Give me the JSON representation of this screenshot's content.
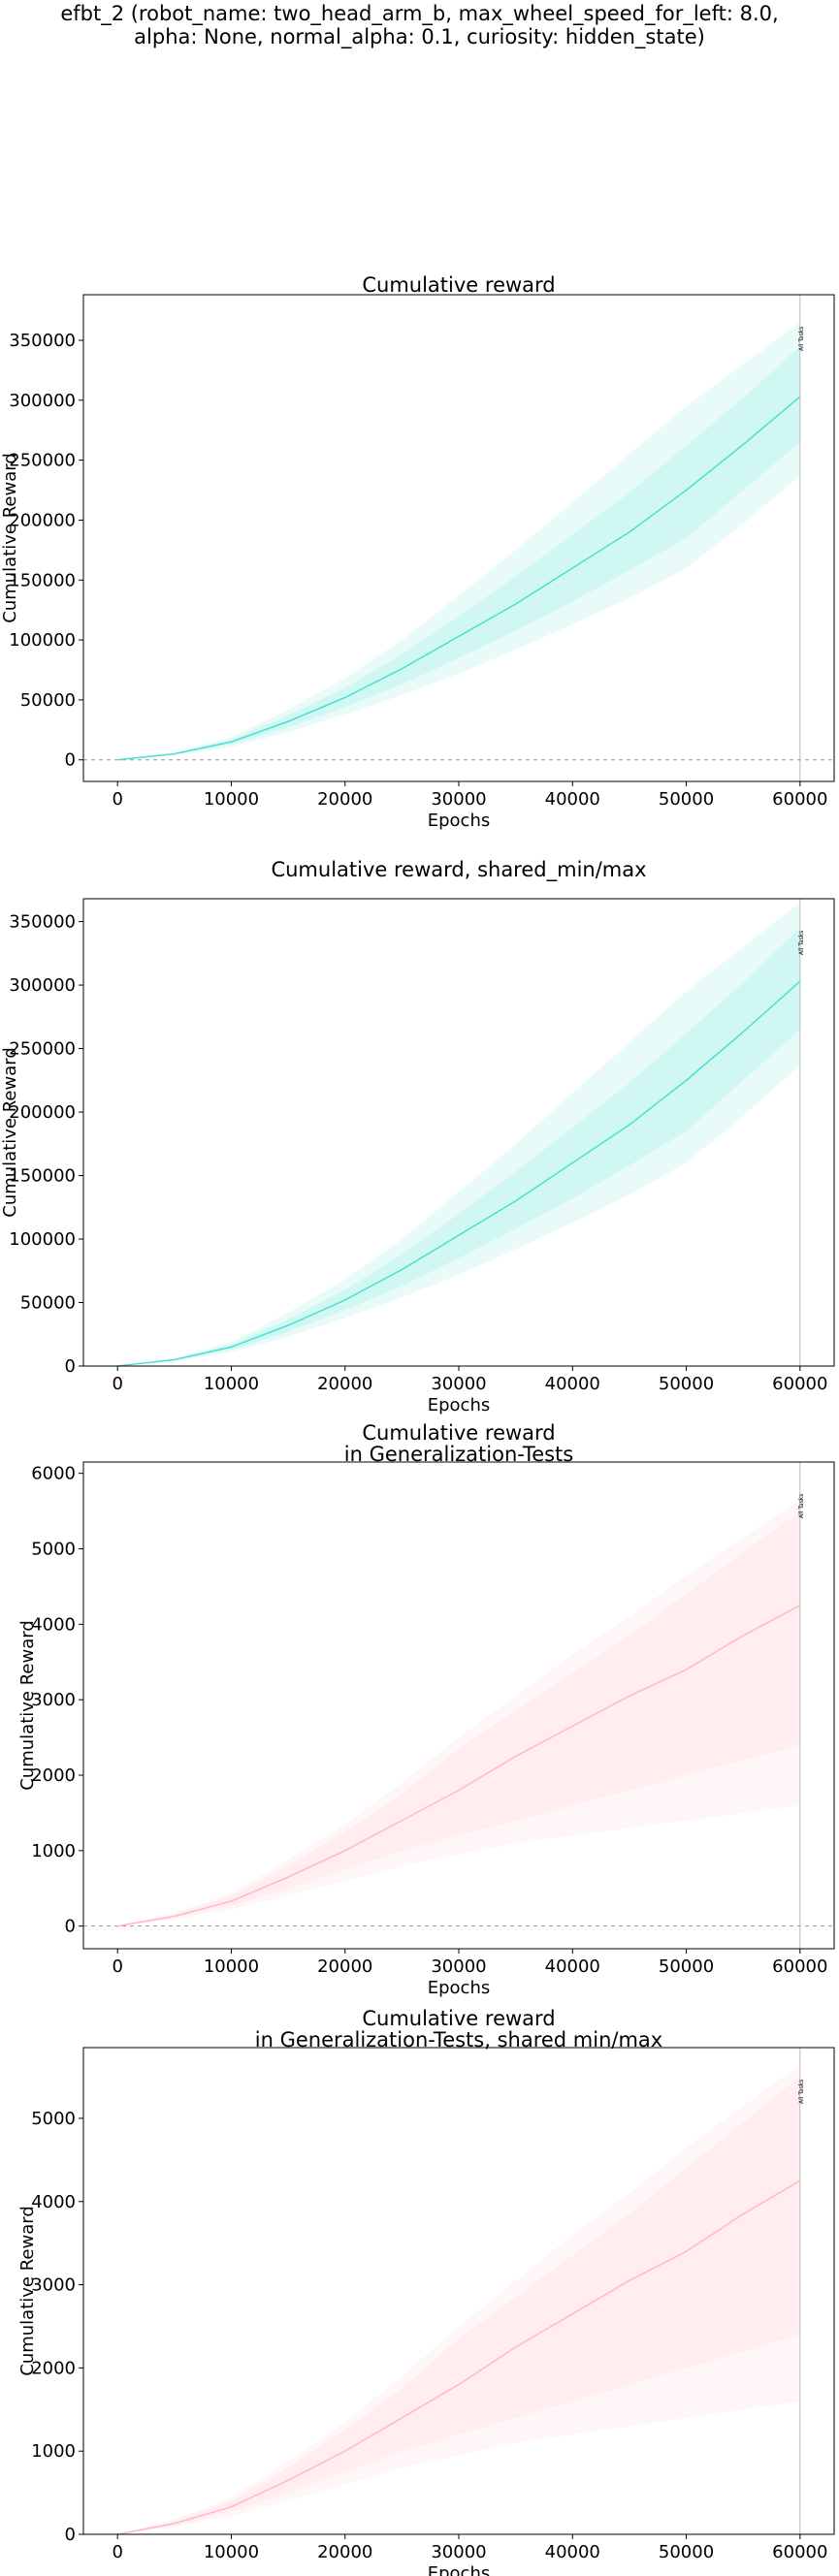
{
  "suptitle": "efbt_2 (robot_name: two_head_arm_b, max_wheel_speed_for_left: 8.0,\nalpha: None, normal_alpha: 0.1, curiosity: hidden_state)",
  "colors": {
    "cyan": "#40e0d0",
    "pink": "#ffb6c1",
    "vline": "#bbbbbb",
    "zero": "#999999"
  },
  "chart_data": [
    {
      "type": "line",
      "title": [
        "Cumulative reward"
      ],
      "xlabel": "Epochs",
      "ylabel": "Cumulative Reward",
      "xlim": [
        -3000,
        63000
      ],
      "ylim": [
        -18000,
        388000
      ],
      "xticks": [
        0,
        10000,
        20000,
        30000,
        40000,
        50000,
        60000
      ],
      "yticks": [
        0,
        50000,
        100000,
        150000,
        200000,
        250000,
        300000,
        350000
      ],
      "zero_line": true,
      "vline": {
        "x": 60000,
        "label": "All Tasks"
      },
      "color": "cyan",
      "series": {
        "x": [
          0,
          5000,
          10000,
          15000,
          20000,
          25000,
          30000,
          35000,
          40000,
          45000,
          50000,
          55000,
          60000
        ],
        "mean": [
          0,
          5000,
          15000,
          32000,
          52000,
          76000,
          103000,
          130000,
          160000,
          190000,
          225000,
          263000,
          303000
        ],
        "inner_lo": [
          0,
          4500,
          13000,
          27000,
          44000,
          63000,
          85000,
          108000,
          132000,
          158000,
          185000,
          225000,
          265000
        ],
        "inner_hi": [
          0,
          5500,
          17000,
          37000,
          60000,
          88000,
          120000,
          153000,
          188000,
          223000,
          262000,
          302000,
          345000
        ],
        "outer_lo": [
          0,
          4000,
          11000,
          23000,
          38000,
          54000,
          72000,
          92000,
          113000,
          135000,
          160000,
          197000,
          237000
        ],
        "outer_hi": [
          0,
          6000,
          19000,
          42000,
          68000,
          100000,
          137000,
          175000,
          215000,
          255000,
          295000,
          330000,
          365000
        ]
      }
    },
    {
      "type": "line",
      "title": [
        "Cumulative reward, shared_min/max"
      ],
      "xlabel": "Epochs",
      "ylabel": "Cumulative Reward",
      "xlim": [
        -3000,
        63000
      ],
      "ylim": [
        0,
        368000
      ],
      "xticks": [
        0,
        10000,
        20000,
        30000,
        40000,
        50000,
        60000
      ],
      "yticks": [
        0,
        50000,
        100000,
        150000,
        200000,
        250000,
        300000,
        350000
      ],
      "zero_line": false,
      "vline": {
        "x": 60000,
        "label": "All Tasks"
      },
      "color": "cyan",
      "series": {
        "x": [
          0,
          5000,
          10000,
          15000,
          20000,
          25000,
          30000,
          35000,
          40000,
          45000,
          50000,
          55000,
          60000
        ],
        "mean": [
          0,
          5000,
          15000,
          32000,
          52000,
          76000,
          103000,
          130000,
          160000,
          190000,
          225000,
          263000,
          303000
        ],
        "inner_lo": [
          0,
          4500,
          13000,
          27000,
          44000,
          63000,
          85000,
          108000,
          132000,
          158000,
          185000,
          225000,
          265000
        ],
        "inner_hi": [
          0,
          5500,
          17000,
          37000,
          60000,
          88000,
          120000,
          153000,
          188000,
          223000,
          262000,
          302000,
          345000
        ],
        "outer_lo": [
          0,
          4000,
          11000,
          23000,
          38000,
          54000,
          72000,
          92000,
          113000,
          135000,
          160000,
          197000,
          237000
        ],
        "outer_hi": [
          0,
          6000,
          19000,
          42000,
          68000,
          100000,
          137000,
          175000,
          215000,
          255000,
          295000,
          330000,
          365000
        ]
      }
    },
    {
      "type": "line",
      "title": [
        "Cumulative reward",
        "in Generalization-Tests"
      ],
      "xlabel": "Epochs",
      "ylabel": "Cumulative Reward",
      "xlim": [
        -3000,
        63000
      ],
      "ylim": [
        -300,
        6150
      ],
      "xticks": [
        0,
        10000,
        20000,
        30000,
        40000,
        50000,
        60000
      ],
      "yticks": [
        0,
        1000,
        2000,
        3000,
        4000,
        5000,
        6000
      ],
      "zero_line": true,
      "vline": {
        "x": 60000,
        "label": "All Tasks"
      },
      "color": "pink",
      "series": {
        "x": [
          0,
          5000,
          10000,
          15000,
          20000,
          25000,
          30000,
          35000,
          40000,
          45000,
          50000,
          55000,
          60000
        ],
        "mean": [
          0,
          130,
          330,
          650,
          1000,
          1400,
          1800,
          2250,
          2650,
          3050,
          3400,
          3850,
          4250
        ],
        "inner_lo": [
          0,
          110,
          270,
          500,
          750,
          1000,
          1200,
          1400,
          1600,
          1800,
          2000,
          2200,
          2400
        ],
        "inner_hi": [
          0,
          160,
          400,
          800,
          1250,
          1750,
          2350,
          2850,
          3350,
          3850,
          4400,
          4950,
          5500
        ],
        "outer_lo": [
          0,
          90,
          220,
          400,
          600,
          800,
          950,
          1100,
          1200,
          1300,
          1400,
          1500,
          1600
        ],
        "outer_hi": [
          0,
          180,
          440,
          880,
          1350,
          1900,
          2500,
          3050,
          3600,
          4100,
          4650,
          5150,
          5650
        ]
      }
    },
    {
      "type": "line",
      "title": [
        "Cumulative reward",
        "in Generalization-Tests, shared min/max"
      ],
      "xlabel": "Epochs",
      "ylabel": "Cumulative Reward",
      "xlim": [
        -3000,
        63000
      ],
      "ylim": [
        0,
        5850
      ],
      "xticks": [
        0,
        10000,
        20000,
        30000,
        40000,
        50000,
        60000
      ],
      "yticks": [
        0,
        1000,
        2000,
        3000,
        4000,
        5000
      ],
      "zero_line": false,
      "vline": {
        "x": 60000,
        "label": "All Tasks"
      },
      "color": "pink",
      "series": {
        "x": [
          0,
          5000,
          10000,
          15000,
          20000,
          25000,
          30000,
          35000,
          40000,
          45000,
          50000,
          55000,
          60000
        ],
        "mean": [
          0,
          130,
          330,
          650,
          1000,
          1400,
          1800,
          2250,
          2650,
          3050,
          3400,
          3850,
          4250
        ],
        "inner_lo": [
          0,
          110,
          270,
          500,
          750,
          1000,
          1200,
          1400,
          1600,
          1800,
          2000,
          2200,
          2400
        ],
        "inner_hi": [
          0,
          160,
          400,
          800,
          1250,
          1750,
          2350,
          2850,
          3350,
          3850,
          4400,
          4950,
          5500
        ],
        "outer_lo": [
          0,
          90,
          220,
          400,
          600,
          800,
          950,
          1100,
          1200,
          1300,
          1400,
          1500,
          1600
        ],
        "outer_hi": [
          0,
          180,
          440,
          880,
          1350,
          1900,
          2500,
          3050,
          3600,
          4100,
          4650,
          5150,
          5650
        ]
      }
    }
  ]
}
